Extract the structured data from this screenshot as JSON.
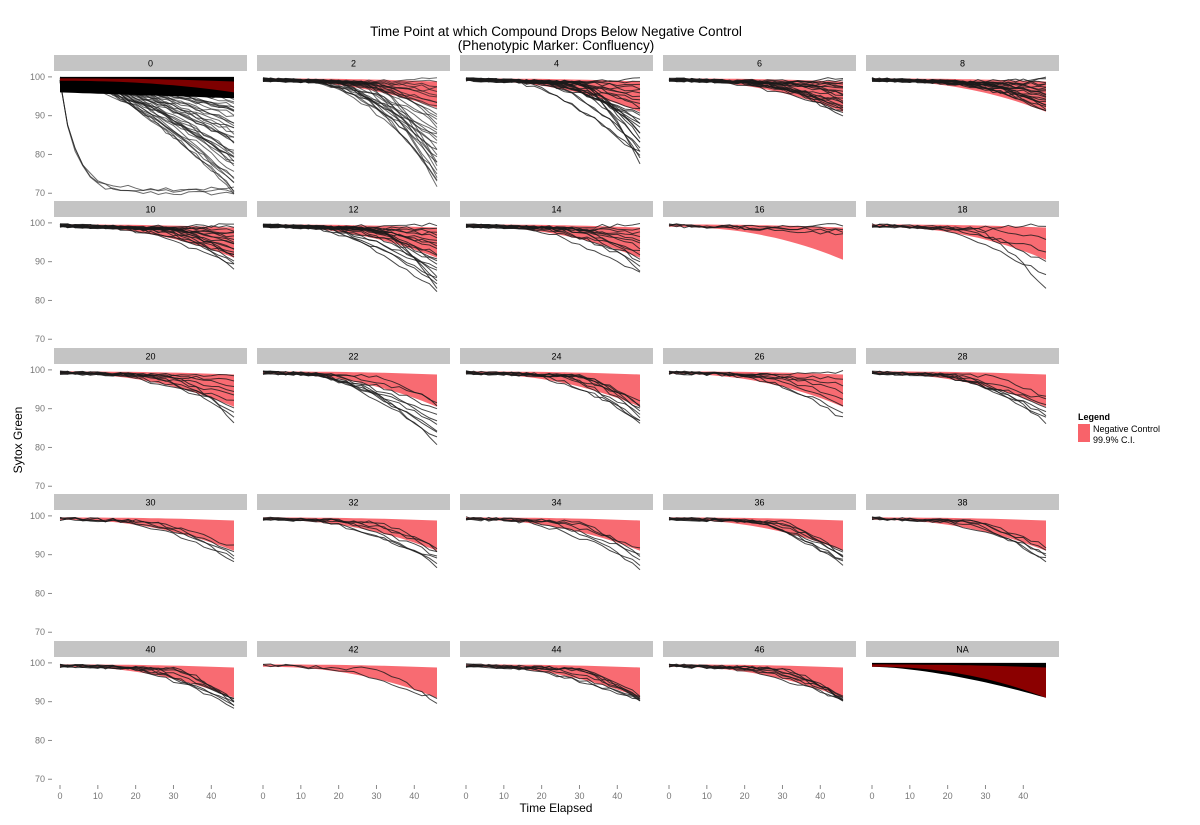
{
  "chart_data": {
    "type": "line",
    "title_line1": "Time Point at which Compound Drops Below Negative Control",
    "title_line2": "(Phenotypic Marker: Confluency)",
    "xlabel": "Time Elapsed",
    "ylabel": "Sytox Green",
    "xlim": [
      0,
      46
    ],
    "ylim": [
      68,
      101
    ],
    "xticks": [
      0,
      10,
      20,
      30,
      40
    ],
    "yticks": [
      70,
      80,
      90,
      100
    ],
    "x_tick_labels": [
      "0",
      "10",
      "20",
      "30",
      "40"
    ],
    "y_tick_labels": [
      "70",
      "80",
      "90",
      "100"
    ],
    "time_points": [
      0,
      2,
      4,
      6,
      8,
      10,
      12,
      14,
      16,
      18,
      20,
      22,
      24,
      26,
      28,
      30,
      32,
      34,
      36,
      38,
      40,
      42,
      44,
      46
    ],
    "facet_layout": {
      "rows": 5,
      "cols": 5
    },
    "facets": [
      {
        "label": "0",
        "n_lines": 50,
        "final_min": 70,
        "final_max": 99,
        "band": [
          99,
          96
        ],
        "early_drop": true
      },
      {
        "label": "2",
        "n_lines": 35,
        "final_min": 72,
        "final_max": 99.5,
        "band": [
          99,
          92
        ]
      },
      {
        "label": "4",
        "n_lines": 28,
        "final_min": 78,
        "final_max": 99.5,
        "band": [
          99,
          91
        ]
      },
      {
        "label": "6",
        "n_lines": 22,
        "final_min": 90,
        "final_max": 99.5,
        "band": [
          99,
          91
        ]
      },
      {
        "label": "8",
        "n_lines": 22,
        "final_min": 91,
        "final_max": 99.5,
        "band": [
          99,
          91
        ]
      },
      {
        "label": "10",
        "n_lines": 20,
        "final_min": 88.5,
        "final_max": 99.5,
        "band": [
          99,
          91
        ]
      },
      {
        "label": "12",
        "n_lines": 22,
        "final_min": 82.5,
        "final_max": 99.5,
        "band": [
          99,
          91
        ]
      },
      {
        "label": "14",
        "n_lines": 14,
        "final_min": 87,
        "final_max": 99.5,
        "band": [
          99,
          91
        ]
      },
      {
        "label": "16",
        "n_lines": 4,
        "final_min": 97,
        "final_max": 99.5,
        "band": [
          99,
          90.5
        ]
      },
      {
        "label": "18",
        "n_lines": 6,
        "final_min": 83,
        "final_max": 99.5,
        "band": [
          99,
          90.5
        ]
      },
      {
        "label": "20",
        "n_lines": 10,
        "final_min": 86.5,
        "final_max": 98.5,
        "band": [
          99,
          90.5
        ]
      },
      {
        "label": "22",
        "n_lines": 10,
        "final_min": 81,
        "final_max": 92,
        "band": [
          99,
          90.5
        ]
      },
      {
        "label": "24",
        "n_lines": 10,
        "final_min": 86,
        "final_max": 92,
        "band": [
          99,
          90.5
        ]
      },
      {
        "label": "26",
        "n_lines": 8,
        "final_min": 87.5,
        "final_max": 99.5,
        "band": [
          99,
          90.5
        ]
      },
      {
        "label": "28",
        "n_lines": 8,
        "final_min": 86.5,
        "final_max": 93,
        "band": [
          99,
          90.5
        ]
      },
      {
        "label": "30",
        "n_lines": 5,
        "final_min": 88,
        "final_max": 92,
        "band": [
          99,
          91
        ]
      },
      {
        "label": "32",
        "n_lines": 7,
        "final_min": 87,
        "final_max": 92,
        "band": [
          99,
          91
        ]
      },
      {
        "label": "34",
        "n_lines": 6,
        "final_min": 86.5,
        "final_max": 91.5,
        "band": [
          99,
          91
        ]
      },
      {
        "label": "36",
        "n_lines": 8,
        "final_min": 87.5,
        "final_max": 91,
        "band": [
          99,
          91
        ]
      },
      {
        "label": "38",
        "n_lines": 6,
        "final_min": 88,
        "final_max": 92,
        "band": [
          99,
          91
        ]
      },
      {
        "label": "40",
        "n_lines": 8,
        "final_min": 88.5,
        "final_max": 91,
        "band": [
          99,
          91
        ]
      },
      {
        "label": "42",
        "n_lines": 2,
        "final_min": 89.5,
        "final_max": 90.5,
        "band": [
          99,
          91
        ]
      },
      {
        "label": "44",
        "n_lines": 8,
        "final_min": 90,
        "final_max": 91.5,
        "band": [
          99,
          91
        ]
      },
      {
        "label": "46",
        "n_lines": 8,
        "final_min": 90,
        "final_max": 91.5,
        "band": [
          99,
          91
        ]
      },
      {
        "label": "NA",
        "n_lines": 0,
        "final_min": 91,
        "final_max": 96,
        "band": [
          99,
          91
        ],
        "solid_black": true
      }
    ],
    "legend": {
      "title": "Legend",
      "label_line1": "Negative Control",
      "label_line2": "99.9% C.I.",
      "position": "right"
    },
    "colors": {
      "band": "#f8636a",
      "line": "#1a1a1a",
      "facet_strip": "#c4c4c4",
      "dark_red": "#8b0000"
    }
  }
}
